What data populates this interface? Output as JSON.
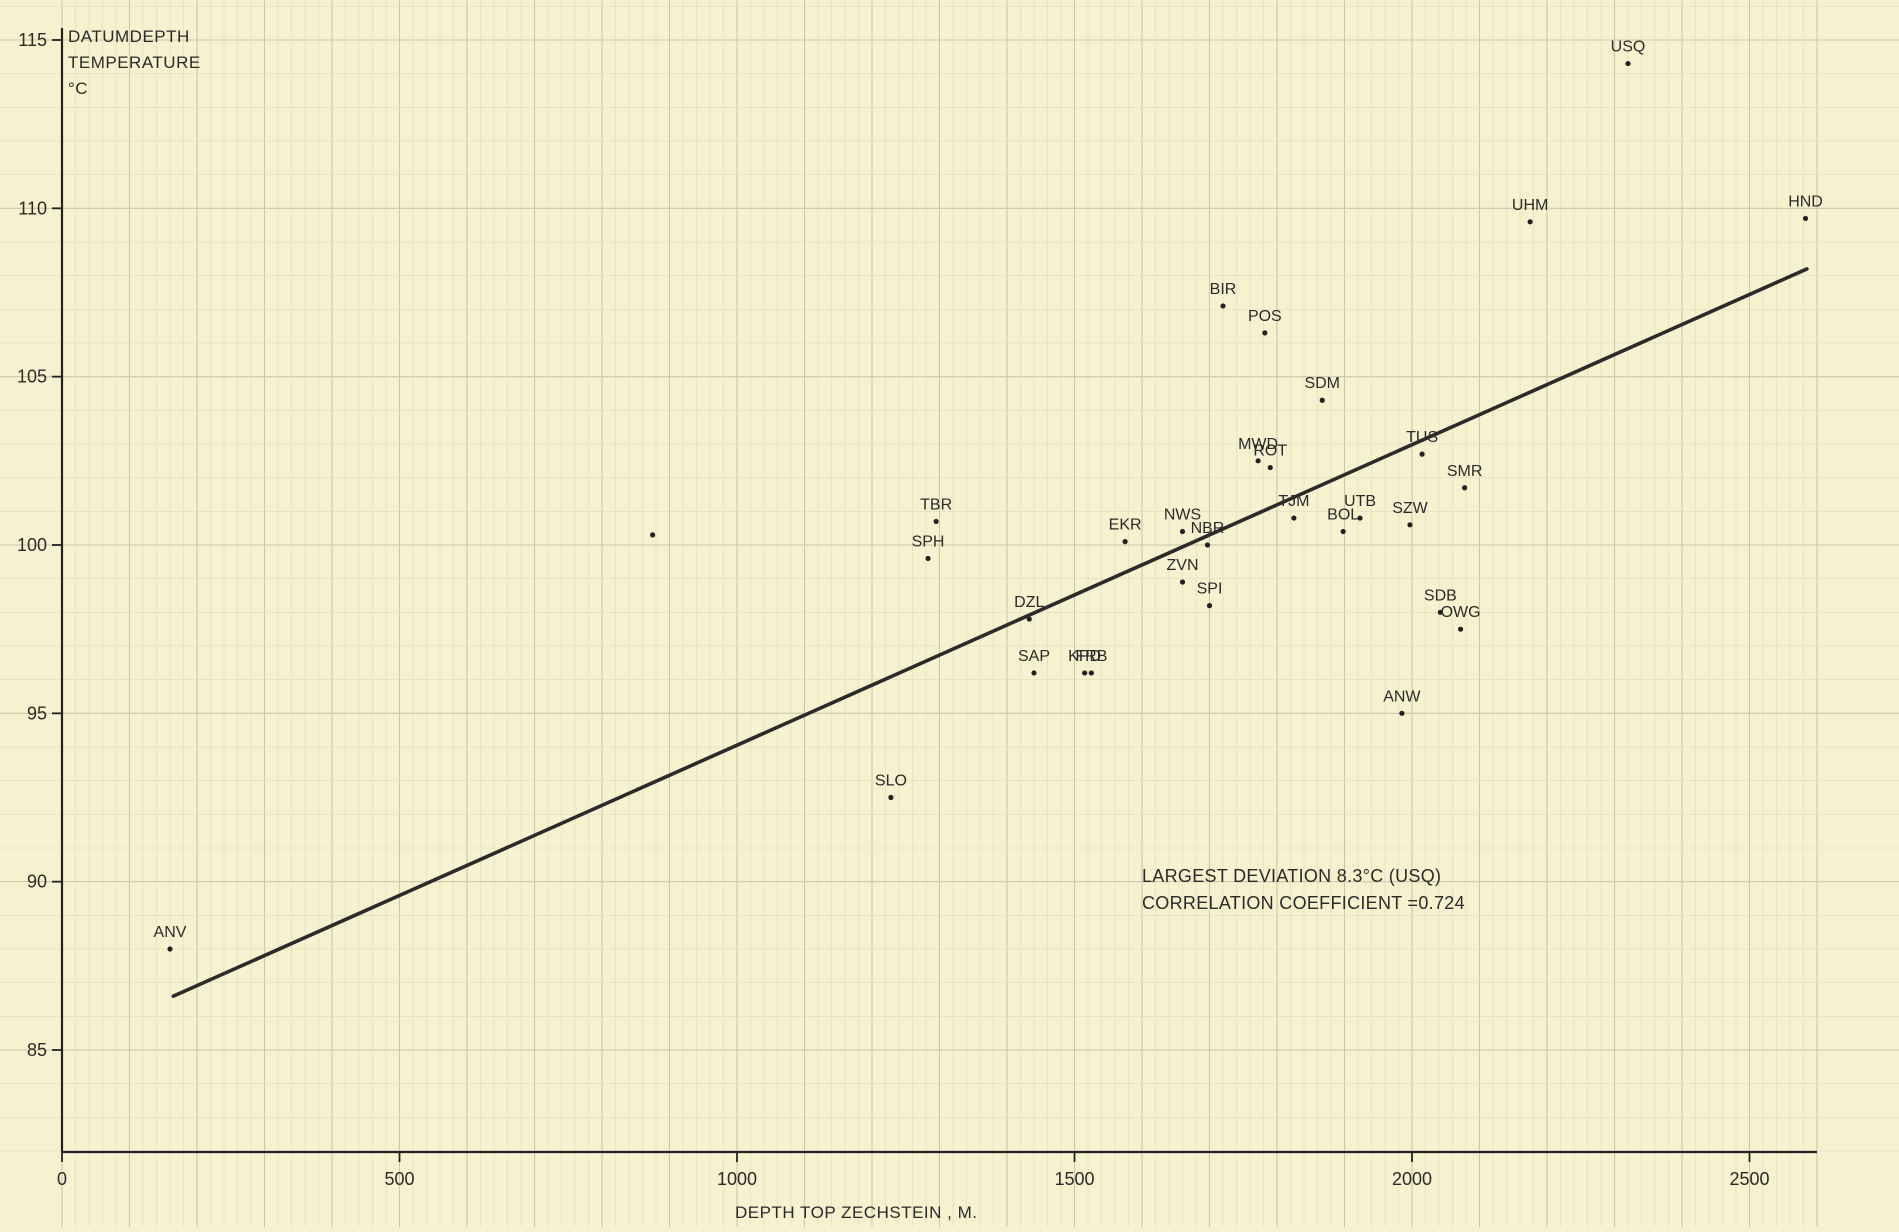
{
  "chart_data": {
    "type": "scatter",
    "xlabel": "DEPTH TOP ZECHSTEIN , M.",
    "ylabel": [
      "DATUMDEPTH",
      "TEMPERATURE",
      "°C"
    ],
    "xlim": [
      0,
      2600
    ],
    "ylim": [
      82,
      116
    ],
    "x_ticks": [
      0,
      500,
      1000,
      1500,
      2000,
      2500
    ],
    "y_ticks": [
      85,
      90,
      95,
      100,
      105,
      110,
      115
    ],
    "grid": true,
    "annotations": [
      "LARGEST DEVIATION  8.3°C (USQ)",
      "CORRELATION COEFFICIENT =0.724"
    ],
    "regression_line": {
      "x": [
        165,
        2585
      ],
      "y": [
        86.6,
        108.2
      ]
    },
    "points": [
      {
        "label": "ANV",
        "x": 160,
        "y": 88.0
      },
      {
        "label": "",
        "x": 875,
        "y": 100.3
      },
      {
        "label": "SLO",
        "x": 1228,
        "y": 92.5
      },
      {
        "label": "TBR",
        "x": 1295,
        "y": 100.7
      },
      {
        "label": "SPH",
        "x": 1283,
        "y": 99.6
      },
      {
        "label": "DZL",
        "x": 1433,
        "y": 97.8
      },
      {
        "label": "SAP",
        "x": 1440,
        "y": 96.2
      },
      {
        "label": "KPD",
        "x": 1515,
        "y": 96.2
      },
      {
        "label": "FRB",
        "x": 1525,
        "y": 96.2
      },
      {
        "label": "EKR",
        "x": 1575,
        "y": 100.1
      },
      {
        "label": "NWS",
        "x": 1660,
        "y": 100.4
      },
      {
        "label": "NBR",
        "x": 1697,
        "y": 100.0
      },
      {
        "label": "ZVN",
        "x": 1660,
        "y": 98.9
      },
      {
        "label": "SPI",
        "x": 1700,
        "y": 98.2
      },
      {
        "label": "BIR",
        "x": 1720,
        "y": 107.1
      },
      {
        "label": "POS",
        "x": 1782,
        "y": 106.3
      },
      {
        "label": "MWD",
        "x": 1772,
        "y": 102.5
      },
      {
        "label": "ROT",
        "x": 1790,
        "y": 102.3
      },
      {
        "label": "SDM",
        "x": 1867,
        "y": 104.3
      },
      {
        "label": "TJM",
        "x": 1825,
        "y": 100.8
      },
      {
        "label": "UTB",
        "x": 1923,
        "y": 100.8
      },
      {
        "label": "BOL",
        "x": 1898,
        "y": 100.4
      },
      {
        "label": "SZW",
        "x": 1997,
        "y": 100.6
      },
      {
        "label": "TUS",
        "x": 2015,
        "y": 102.7
      },
      {
        "label": "SMR",
        "x": 2078,
        "y": 101.7
      },
      {
        "label": "SDB",
        "x": 2042,
        "y": 98.0
      },
      {
        "label": "OWG",
        "x": 2072,
        "y": 97.5
      },
      {
        "label": "ANW",
        "x": 1985,
        "y": 95.0
      },
      {
        "label": "UHM",
        "x": 2175,
        "y": 109.6
      },
      {
        "label": "USQ",
        "x": 2320,
        "y": 114.3
      },
      {
        "label": "HND",
        "x": 2583,
        "y": 109.7
      }
    ]
  }
}
